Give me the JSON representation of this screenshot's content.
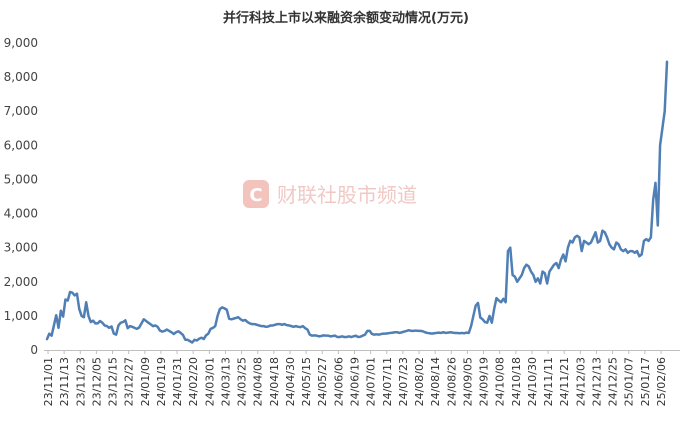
{
  "watermark": {
    "logo": "C",
    "text": "财联社股市频道"
  },
  "chart_data": {
    "type": "line",
    "title": "并行科技上市以来融资余额变动情况(万元)",
    "xlabel": "",
    "ylabel": "",
    "ylim": [
      0,
      9000
    ],
    "yticks": [
      0,
      1000,
      2000,
      3000,
      4000,
      5000,
      6000,
      7000,
      8000,
      9000
    ],
    "ytick_labels": [
      "0",
      "1,000",
      "2,000",
      "3,000",
      "4,000",
      "5,000",
      "6,000",
      "7,000",
      "8,000",
      "9,000"
    ],
    "xtick_labels": [
      "23/11/01",
      "23/11/13",
      "23/11/23",
      "23/12/05",
      "23/12/15",
      "23/12/27",
      "24/01/09",
      "24/01/19",
      "24/01/31",
      "24/02/20",
      "24/03/01",
      "24/03/13",
      "24/03/25",
      "24/04/08",
      "24/04/18",
      "24/04/30",
      "24/05/15",
      "24/05/27",
      "24/06/06",
      "24/06/19",
      "24/07/01",
      "24/07/11",
      "24/07/23",
      "24/08/02",
      "24/08/14",
      "24/08/26",
      "24/09/05",
      "24/09/19",
      "24/10/08",
      "24/10/18",
      "24/10/30",
      "24/11/11",
      "24/11/21",
      "24/12/03",
      "24/12/13",
      "24/12/25",
      "25/01/07",
      "25/01/17",
      "25/02/06"
    ],
    "grid": false,
    "legend": "none",
    "color": "#4f7fb5",
    "series": [
      {
        "values": [
          320,
          480,
          420,
          720,
          1020,
          650,
          1150,
          980,
          1480,
          1450,
          1700,
          1680,
          1600,
          1650,
          1200,
          1000,
          960,
          1400,
          1000,
          820,
          860,
          780,
          780,
          850,
          800,
          720,
          700,
          650,
          690,
          480,
          450,
          720,
          800,
          820,
          870,
          640,
          700,
          680,
          650,
          620,
          660,
          780,
          900,
          850,
          800,
          750,
          700,
          720,
          680,
          570,
          540,
          560,
          600,
          560,
          520,
          470,
          520,
          550,
          500,
          440,
          300,
          300,
          260,
          220,
          300,
          280,
          330,
          360,
          320,
          430,
          480,
          620,
          650,
          700,
          1000,
          1200,
          1250,
          1220,
          1180,
          920,
          900,
          920,
          940,
          960,
          900,
          860,
          880,
          820,
          780,
          760,
          760,
          740,
          720,
          700,
          700,
          680,
          690,
          720,
          720,
          740,
          760,
          760,
          740,
          760,
          730,
          720,
          700,
          680,
          700,
          680,
          670,
          700,
          640,
          600,
          450,
          420,
          430,
          420,
          400,
          410,
          430,
          420,
          420,
          400,
          410,
          420,
          380,
          380,
          400,
          380,
          380,
          400,
          380,
          400,
          420,
          380,
          390,
          420,
          450,
          560,
          560,
          470,
          450,
          460,
          450,
          470,
          480,
          480,
          490,
          500,
          510,
          520,
          520,
          500,
          520,
          540,
          560,
          580,
          560,
          560,
          570,
          560,
          560,
          550,
          520,
          500,
          490,
          480,
          490,
          500,
          510,
          500,
          520,
          500,
          510,
          520,
          510,
          500,
          500,
          490,
          500,
          490,
          510,
          500,
          700,
          1000,
          1300,
          1380,
          950,
          900,
          820,
          800,
          1000,
          800,
          1200,
          1520,
          1450,
          1400,
          1500,
          1400,
          2900,
          3000,
          2200,
          2150,
          2000,
          2100,
          2200,
          2400,
          2500,
          2450,
          2300,
          2200,
          2000,
          2100,
          1950,
          2300,
          2250,
          1950,
          2300,
          2400,
          2500,
          2550,
          2400,
          2650,
          2800,
          2600,
          3000,
          3200,
          3150,
          3300,
          3350,
          3300,
          2900,
          3200,
          3150,
          3100,
          3150,
          3300,
          3450,
          3150,
          3200,
          3500,
          3450,
          3300,
          3100,
          3000,
          2950,
          3150,
          3100,
          2950,
          2900,
          2950,
          2850,
          2900,
          2900,
          2850,
          2900,
          2750,
          2800,
          3200,
          3250,
          3200,
          3300,
          4400,
          4900,
          3650,
          6000,
          6500,
          7000,
          8450
        ]
      }
    ]
  }
}
